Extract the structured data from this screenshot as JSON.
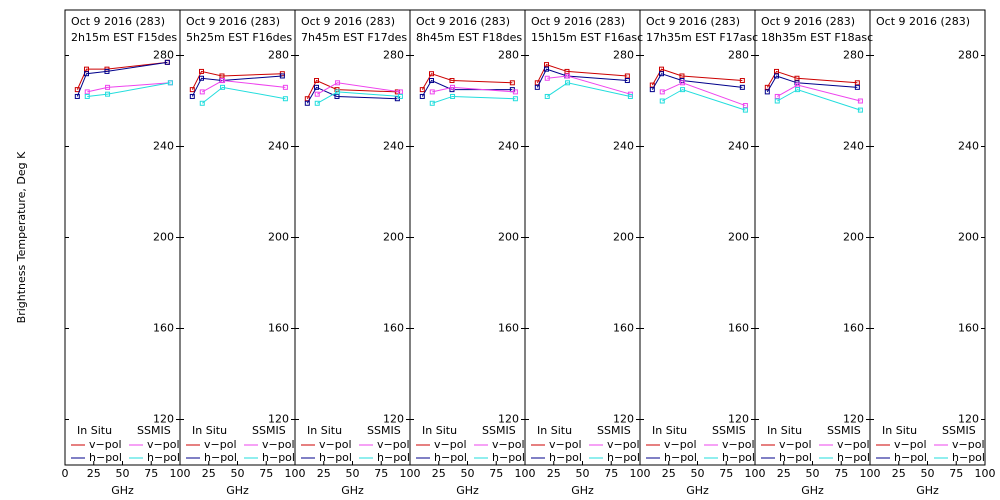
{
  "chart_data": [
    {
      "type": "line",
      "title": "Oct 9 2016 (283)",
      "subtitle": "2h15m EST F15des",
      "ylabel": "Brightness Temperature, Deg K",
      "xlabel": "GHz",
      "xlim": [
        0,
        100
      ],
      "xticks": [
        0,
        25,
        50,
        75,
        100
      ],
      "ylim": [
        100,
        300
      ],
      "yticks": [
        120,
        160,
        200,
        240,
        280
      ],
      "legend_titles": [
        "In Situ",
        "SSMIS"
      ],
      "series": [
        {
          "name": "v−pol",
          "color": "#cc0000",
          "x": [
            10.7,
            18.7,
            36.5,
            89
          ],
          "values": [
            265,
            274,
            274,
            277
          ]
        },
        {
          "name": "h−pol",
          "color": "#00008b",
          "x": [
            10.7,
            18.7,
            36.5,
            89
          ],
          "values": [
            262,
            272,
            273,
            277
          ]
        },
        {
          "name": "v−pol",
          "color": "#ee44ee",
          "x": [
            19.35,
            37,
            91.65
          ],
          "values": [
            264,
            266,
            268
          ]
        },
        {
          "name": "h−pol",
          "color": "#22dddd",
          "x": [
            19.35,
            37,
            91.65
          ],
          "values": [
            262,
            263,
            268
          ]
        }
      ]
    },
    {
      "type": "line",
      "title": "Oct 9 2016 (283)",
      "subtitle": "5h25m EST F16des",
      "xlabel": "GHz",
      "xlim": [
        0,
        100
      ],
      "xticks": [
        25,
        50,
        75,
        100
      ],
      "ylim": [
        100,
        300
      ],
      "yticks": [
        120,
        160,
        200,
        240,
        280
      ],
      "legend_titles": [
        "In Situ",
        "SSMIS"
      ],
      "series": [
        {
          "name": "v−pol",
          "color": "#cc0000",
          "x": [
            10.7,
            18.7,
            36.5,
            89
          ],
          "values": [
            265,
            273,
            271,
            272
          ]
        },
        {
          "name": "h−pol",
          "color": "#00008b",
          "x": [
            10.7,
            18.7,
            36.5,
            89
          ],
          "values": [
            262,
            270,
            269,
            271
          ]
        },
        {
          "name": "v−pol",
          "color": "#ee44ee",
          "x": [
            19.35,
            37,
            91.65
          ],
          "values": [
            264,
            269,
            266
          ]
        },
        {
          "name": "h−pol",
          "color": "#22dddd",
          "x": [
            19.35,
            37,
            91.65
          ],
          "values": [
            259,
            266,
            261
          ]
        }
      ]
    },
    {
      "type": "line",
      "title": "Oct 9 2016 (283)",
      "subtitle": "7h45m EST F17des",
      "xlabel": "GHz",
      "xlim": [
        0,
        100
      ],
      "xticks": [
        25,
        50,
        75,
        100
      ],
      "ylim": [
        100,
        300
      ],
      "yticks": [
        120,
        160,
        200,
        240,
        280
      ],
      "legend_titles": [
        "In Situ",
        "SSMIS"
      ],
      "series": [
        {
          "name": "v−pol",
          "color": "#cc0000",
          "x": [
            10.7,
            18.7,
            36.5,
            89
          ],
          "values": [
            261,
            269,
            265,
            264
          ]
        },
        {
          "name": "h−pol",
          "color": "#00008b",
          "x": [
            10.7,
            18.7,
            36.5,
            89
          ],
          "values": [
            259,
            266,
            262,
            261
          ]
        },
        {
          "name": "v−pol",
          "color": "#ee44ee",
          "x": [
            19.35,
            37,
            91.65
          ],
          "values": [
            263,
            268,
            264
          ]
        },
        {
          "name": "h−pol",
          "color": "#22dddd",
          "x": [
            19.35,
            37,
            91.65
          ],
          "values": [
            259,
            264,
            262
          ]
        }
      ]
    },
    {
      "type": "line",
      "title": "Oct 9 2016 (283)",
      "subtitle": "8h45m EST F18des",
      "xlabel": "GHz",
      "xlim": [
        0,
        100
      ],
      "xticks": [
        25,
        50,
        75,
        100
      ],
      "ylim": [
        100,
        300
      ],
      "yticks": [
        120,
        160,
        200,
        240,
        280
      ],
      "legend_titles": [
        "In Situ",
        "SSMIS"
      ],
      "series": [
        {
          "name": "v−pol",
          "color": "#cc0000",
          "x": [
            10.7,
            18.7,
            36.5,
            89
          ],
          "values": [
            265,
            272,
            269,
            268
          ]
        },
        {
          "name": "h−pol",
          "color": "#00008b",
          "x": [
            10.7,
            18.7,
            36.5,
            89
          ],
          "values": [
            262,
            269,
            265,
            265
          ]
        },
        {
          "name": "v−pol",
          "color": "#ee44ee",
          "x": [
            19.35,
            37,
            91.65
          ],
          "values": [
            264,
            266,
            264
          ]
        },
        {
          "name": "h−pol",
          "color": "#22dddd",
          "x": [
            19.35,
            37,
            91.65
          ],
          "values": [
            259,
            262,
            261
          ]
        }
      ]
    },
    {
      "type": "line",
      "title": "Oct 9 2016 (283)",
      "subtitle": "15h15m EST F16asc",
      "xlabel": "GHz",
      "xlim": [
        0,
        100
      ],
      "xticks": [
        25,
        50,
        75,
        100
      ],
      "ylim": [
        100,
        300
      ],
      "yticks": [
        120,
        160,
        200,
        240,
        280
      ],
      "legend_titles": [
        "In Situ",
        "SSMIS"
      ],
      "series": [
        {
          "name": "v−pol",
          "color": "#cc0000",
          "x": [
            10.7,
            18.7,
            36.5,
            89
          ],
          "values": [
            268,
            276,
            273,
            271
          ]
        },
        {
          "name": "h−pol",
          "color": "#00008b",
          "x": [
            10.7,
            18.7,
            36.5,
            89
          ],
          "values": [
            266,
            274,
            271,
            269
          ]
        },
        {
          "name": "v−pol",
          "color": "#ee44ee",
          "x": [
            19.35,
            37,
            91.65
          ],
          "values": [
            270,
            271,
            263
          ]
        },
        {
          "name": "h−pol",
          "color": "#22dddd",
          "x": [
            19.35,
            37,
            91.65
          ],
          "values": [
            262,
            268,
            262
          ]
        }
      ]
    },
    {
      "type": "line",
      "title": "Oct 9 2016 (283)",
      "subtitle": "17h35m EST F17asc",
      "xlabel": "GHz",
      "xlim": [
        0,
        100
      ],
      "xticks": [
        25,
        50,
        75,
        100
      ],
      "ylim": [
        100,
        300
      ],
      "yticks": [
        120,
        160,
        200,
        240,
        280
      ],
      "legend_titles": [
        "In Situ",
        "SSMIS"
      ],
      "series": [
        {
          "name": "v−pol",
          "color": "#cc0000",
          "x": [
            10.7,
            18.7,
            36.5,
            89
          ],
          "values": [
            267,
            274,
            271,
            269
          ]
        },
        {
          "name": "h−pol",
          "color": "#00008b",
          "x": [
            10.7,
            18.7,
            36.5,
            89
          ],
          "values": [
            265,
            272,
            269,
            266
          ]
        },
        {
          "name": "v−pol",
          "color": "#ee44ee",
          "x": [
            19.35,
            37,
            91.65
          ],
          "values": [
            264,
            268,
            258
          ]
        },
        {
          "name": "h−pol",
          "color": "#22dddd",
          "x": [
            19.35,
            37,
            91.65
          ],
          "values": [
            260,
            265,
            256
          ]
        }
      ]
    },
    {
      "type": "line",
      "title": "Oct 9 2016 (283)",
      "subtitle": "18h35m EST F18asc",
      "xlabel": "GHz",
      "xlim": [
        0,
        100
      ],
      "xticks": [
        25,
        50,
        75,
        100
      ],
      "ylim": [
        100,
        300
      ],
      "yticks": [
        120,
        160,
        200,
        240,
        280
      ],
      "legend_titles": [
        "In Situ",
        "SSMIS"
      ],
      "series": [
        {
          "name": "v−pol",
          "color": "#cc0000",
          "x": [
            10.7,
            18.7,
            36.5,
            89
          ],
          "values": [
            266,
            273,
            270,
            268
          ]
        },
        {
          "name": "h−pol",
          "color": "#00008b",
          "x": [
            10.7,
            18.7,
            36.5,
            89
          ],
          "values": [
            264,
            271,
            268,
            266
          ]
        },
        {
          "name": "v−pol",
          "color": "#ee44ee",
          "x": [
            19.35,
            37,
            91.65
          ],
          "values": [
            262,
            267,
            260
          ]
        },
        {
          "name": "h−pol",
          "color": "#22dddd",
          "x": [
            19.35,
            37,
            91.65
          ],
          "values": [
            260,
            265,
            256
          ]
        }
      ]
    },
    {
      "type": "line",
      "title": "Oct 9 2016 (283)",
      "xlabel": "GHz",
      "xlim": [
        0,
        100
      ],
      "xticks": [
        25,
        50,
        75,
        100
      ],
      "ylim": [
        100,
        300
      ],
      "yticks": [
        120,
        160,
        200,
        240,
        280
      ],
      "legend_titles": [
        "In Situ",
        "SSMIS"
      ],
      "series": [
        {
          "name": "v−pol",
          "color": "#cc0000",
          "x": [],
          "values": []
        },
        {
          "name": "h−pol",
          "color": "#00008b",
          "x": [],
          "values": []
        },
        {
          "name": "v−pol",
          "color": "#ee44ee",
          "x": [],
          "values": []
        },
        {
          "name": "h−pol",
          "color": "#22dddd",
          "x": [],
          "values": []
        }
      ]
    }
  ]
}
